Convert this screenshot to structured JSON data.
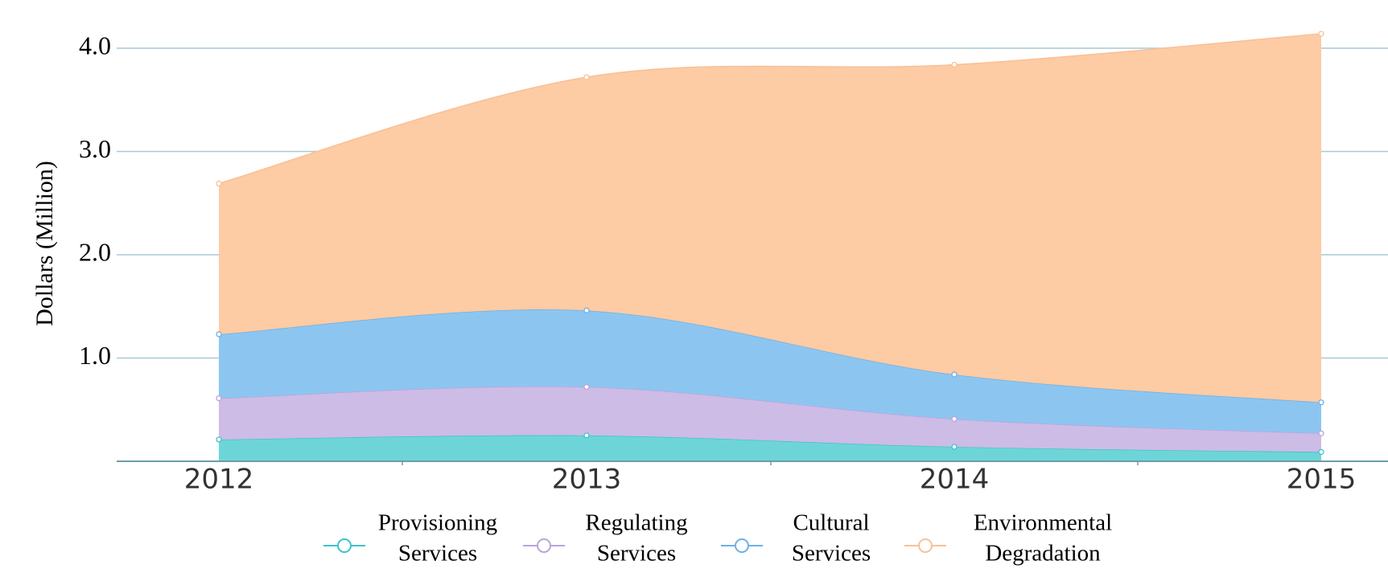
{
  "chart_data": {
    "type": "area",
    "stacked": true,
    "categories": [
      "2012",
      "2013",
      "2014",
      "2015"
    ],
    "ylabel": "Dollars (Million)",
    "y_ticks": [
      "4.0",
      "3.0",
      "2.0",
      "1.0"
    ],
    "ylim": [
      0,
      4.0
    ],
    "grid": true,
    "legend_position": "bottom",
    "series": [
      {
        "name": "Provisioning Services",
        "label_lines": [
          "Provisioning",
          "Services"
        ],
        "color": "#6dd5d8",
        "line_color": "#3dc4c7",
        "values": [
          0.21,
          0.25,
          0.14,
          0.09
        ]
      },
      {
        "name": "Regulating Services",
        "label_lines": [
          "Regulating",
          "Services"
        ],
        "color": "#cdbce6",
        "line_color": "#b9a4dc",
        "values": [
          0.4,
          0.47,
          0.27,
          0.18
        ]
      },
      {
        "name": "Cultural Services",
        "label_lines": [
          "Cultural",
          "Services"
        ],
        "color": "#8cc6f0",
        "line_color": "#6fb0e6",
        "values": [
          0.62,
          0.74,
          0.43,
          0.3
        ]
      },
      {
        "name": "Environmental Degradation",
        "label_lines": [
          "Environmental",
          "Degradation"
        ],
        "color": "#fdcba4",
        "line_color": "#f9c097",
        "values": [
          1.46,
          2.26,
          3.0,
          3.57
        ]
      }
    ],
    "colors": {
      "grid": "#a9c9d6",
      "axis": "#6e9caa"
    }
  }
}
